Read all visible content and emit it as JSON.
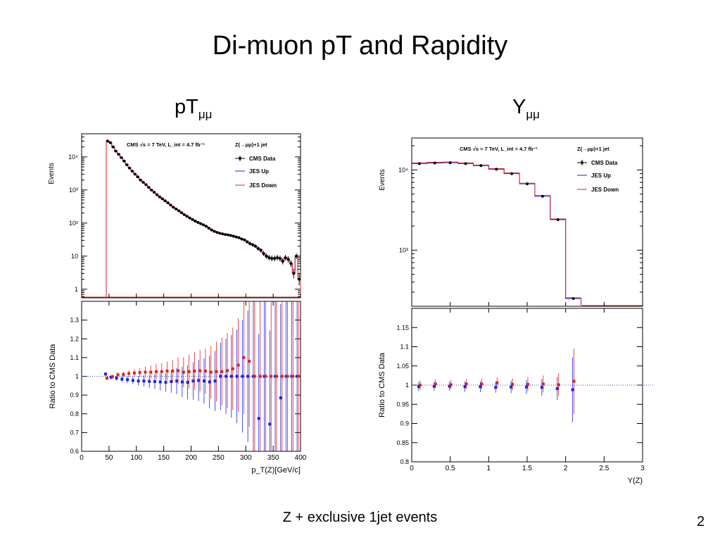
{
  "slide": {
    "title": "Di-muon pT and Rapidity",
    "left_subtitle_main": "pT",
    "left_subtitle_sub": "μμ",
    "right_subtitle_main": "Y",
    "right_subtitle_sub": "μμ",
    "footer": "Z + exclusive 1jet events",
    "page_number": "2"
  },
  "colors": {
    "data": "#000000",
    "jes_up": "#2222dd",
    "jes_down": "#dd2222"
  },
  "chart_data": [
    {
      "type": "line",
      "scale": "log",
      "title": "CMS √s = 7 TeV, L_int = 4.7 fb⁻¹",
      "process": "Z(→μμ)+1 jet",
      "ylabel": "Events",
      "legend": [
        "CMS Data",
        "JES Up",
        "JES Down"
      ],
      "legend_position": "top-right",
      "xlim": [
        0,
        400
      ],
      "ylim": [
        0.55,
        50000
      ],
      "y_ticks": [
        "1",
        "10",
        "10²",
        "10³",
        "10⁴"
      ],
      "x": [
        47.5,
        52.5,
        57.5,
        62.5,
        67.5,
        72.5,
        77.5,
        82.5,
        87.5,
        92.5,
        97.5,
        102.5,
        107.5,
        112.5,
        117.5,
        122.5,
        127.5,
        132.5,
        137.5,
        142.5,
        147.5,
        152.5,
        157.5,
        162.5,
        167.5,
        172.5,
        177.5,
        182.5,
        187.5,
        192.5,
        197.5,
        202.5,
        207.5,
        212.5,
        217.5,
        222.5,
        227.5,
        232.5,
        237.5,
        242.5,
        247.5,
        252.5,
        257.5,
        262.5,
        267.5,
        272.5,
        277.5,
        282.5,
        287.5,
        292.5,
        297.5,
        302.5,
        307.5,
        312.5,
        317.5,
        322.5,
        327.5,
        332.5,
        337.5,
        342.5,
        347.5,
        352.5,
        357.5,
        362.5,
        367.5,
        372.5,
        377.5,
        382.5,
        387.5,
        392.5,
        397.5
      ],
      "values": [
        30000,
        27000,
        20000,
        15000,
        12000,
        9500,
        7500,
        5800,
        4600,
        3700,
        3000,
        2500,
        2000,
        1700,
        1450,
        1200,
        1000,
        850,
        720,
        620,
        540,
        470,
        410,
        350,
        300,
        265,
        235,
        205,
        180,
        160,
        142,
        128,
        115,
        105,
        96,
        88,
        80,
        70,
        62,
        56,
        52,
        49,
        47,
        45,
        44,
        42,
        40,
        38,
        36,
        33,
        31,
        27,
        24,
        22,
        20,
        17,
        15,
        12,
        10,
        9,
        8.5,
        8.5,
        9,
        8.5,
        7,
        9,
        8,
        6,
        3,
        10,
        2
      ],
      "ratio": {
        "ylabel": "Ratio to CMS Data",
        "xlabel": "p_T(Z)[GeV/c]",
        "xlim": [
          0,
          400
        ],
        "ylim": [
          0.6,
          1.4
        ],
        "x_ticks": [
          0,
          50,
          100,
          150,
          200,
          250,
          300,
          350,
          400
        ],
        "y_ticks": [
          0.6,
          0.7,
          0.8,
          0.9,
          1,
          1.1,
          1.2,
          1.3
        ],
        "x": [
          45,
          55,
          65,
          75,
          85,
          95,
          105,
          115,
          125,
          135,
          145,
          155,
          165,
          175,
          185,
          195,
          205,
          215,
          225,
          235,
          245,
          255,
          265,
          275,
          285,
          295,
          305,
          315,
          325,
          335,
          345,
          355,
          365,
          375,
          385,
          395
        ],
        "jes_up": [
          1.012,
          0.995,
          0.99,
          0.985,
          0.982,
          0.978,
          0.975,
          0.975,
          0.973,
          0.972,
          0.97,
          0.968,
          0.972,
          0.975,
          0.97,
          0.968,
          0.975,
          0.978,
          0.975,
          0.97,
          0.975,
          1.0,
          1.0,
          1.0,
          1.0,
          1.0,
          1.0,
          1.0,
          0.775,
          1.0,
          0.745,
          1.0,
          0.885,
          1.0,
          1.0,
          1.0
        ],
        "jes_down": [
          0.99,
          0.998,
          1.008,
          1.01,
          1.015,
          1.018,
          1.02,
          1.022,
          1.022,
          1.025,
          1.025,
          1.028,
          1.028,
          1.03,
          1.022,
          1.025,
          1.028,
          1.03,
          1.028,
          1.022,
          1.025,
          1.025,
          1.03,
          1.04,
          1.06,
          1.1,
          1.08,
          1.0,
          1.0,
          1.0,
          1.0,
          1.0,
          1.0,
          1.0,
          1.0,
          1.0
        ],
        "err": [
          0.01,
          0.01,
          0.012,
          0.015,
          0.018,
          0.02,
          0.025,
          0.03,
          0.035,
          0.04,
          0.045,
          0.05,
          0.06,
          0.07,
          0.08,
          0.09,
          0.1,
          0.11,
          0.12,
          0.14,
          0.16,
          0.18,
          0.2,
          0.22,
          0.25,
          0.3,
          0.35,
          0.4,
          0.45,
          0.5,
          0.5,
          0.5,
          0.5,
          0.5,
          0.5,
          0.5
        ]
      }
    },
    {
      "type": "line",
      "scale": "log",
      "title": "CMS √s = 7 TeV, L_int = 4.7 fb⁻¹",
      "process": "Z(→μμ)+1 jet",
      "ylabel": "Events",
      "legend": [
        "CMS Data",
        "JES Up",
        "JES Down"
      ],
      "legend_position": "top-right",
      "xlim": [
        0,
        3
      ],
      "ylim": [
        200,
        25000
      ],
      "y_ticks": [
        "10³",
        "10⁴"
      ],
      "x": [
        0.1,
        0.3,
        0.5,
        0.7,
        0.9,
        1.1,
        1.3,
        1.5,
        1.7,
        1.9,
        2.1
      ],
      "values": [
        12000,
        12200,
        12300,
        12000,
        11300,
        10200,
        9000,
        6700,
        4700,
        2400,
        250
      ],
      "ratio": {
        "ylabel": "Ratio to CMS Data",
        "xlabel": "Y(Z)",
        "xlim": [
          0,
          3
        ],
        "ylim": [
          0.8,
          1.2
        ],
        "x_ticks": [
          0,
          0.5,
          1,
          1.5,
          2,
          2.5,
          3
        ],
        "y_ticks": [
          0.8,
          0.85,
          0.9,
          0.95,
          1,
          1.05,
          1.1,
          1.15
        ],
        "x": [
          0.1,
          0.3,
          0.5,
          0.7,
          0.9,
          1.1,
          1.3,
          1.5,
          1.7,
          1.9,
          2.1
        ],
        "jes_up": [
          0.996,
          0.997,
          0.997,
          0.996,
          0.996,
          0.994,
          0.995,
          0.995,
          0.994,
          0.991,
          0.988
        ],
        "jes_down": [
          1.0,
          1.003,
          1.001,
          1.003,
          1.003,
          1.006,
          1.002,
          1.002,
          1.003,
          1.001,
          1.01
        ],
        "err": [
          0.012,
          0.012,
          0.012,
          0.013,
          0.014,
          0.014,
          0.016,
          0.018,
          0.022,
          0.03,
          0.085
        ]
      }
    }
  ]
}
